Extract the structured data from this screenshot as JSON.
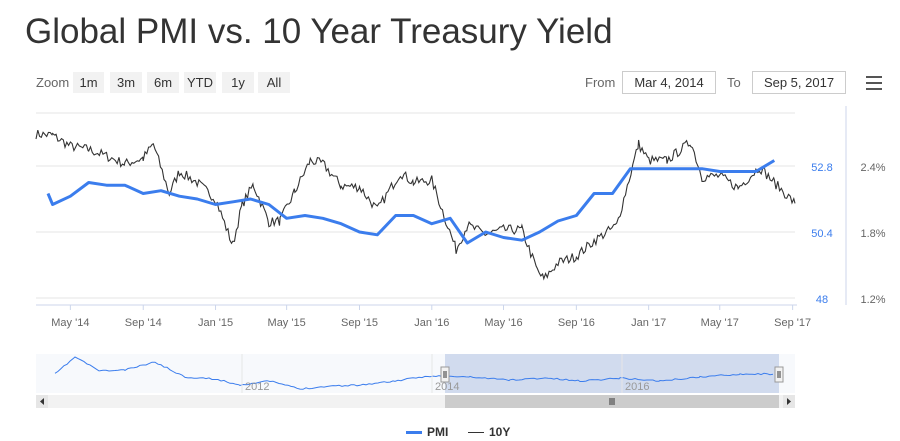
{
  "title": "Global PMI vs. 10 Year Treasury Yield",
  "range_selector": {
    "zoom_label": "Zoom",
    "buttons": [
      "1m",
      "3m",
      "6m",
      "YTD",
      "1y",
      "All"
    ],
    "from_label": "From",
    "from_value": "Mar 4, 2014",
    "to_label": "To",
    "to_value": "Sep 5, 2017"
  },
  "menu_icon": "hamburger-menu-icon",
  "colors": {
    "pmi": "#3B7DED",
    "ten_year": "#333333",
    "navigator_fill": "#c7d3ea"
  },
  "chart_data": {
    "type": "line",
    "title": "Global PMI vs. 10 Year Treasury Yield",
    "x_ticks": [
      "May '14",
      "Sep '14",
      "Jan '15",
      "May '15",
      "Sep '15",
      "Jan '16",
      "May '16",
      "Sep '16",
      "Jan '17",
      "May '17",
      "Sep '17"
    ],
    "x_range": [
      "2014-03-04",
      "2017-09-05"
    ],
    "y_axis_pmi": {
      "ticks": [
        "48",
        "50.4",
        "52.8"
      ],
      "range": [
        48,
        52.8
      ]
    },
    "y_axis_yield": {
      "ticks": [
        "1.2%",
        "1.8%",
        "2.4%"
      ],
      "range": [
        1.2,
        2.4
      ]
    },
    "series": [
      {
        "name": "PMI",
        "color": "#3B7DED",
        "points": [
          [
            "2014-03-01",
            51.8
          ],
          [
            "2014-04-01",
            51.4
          ],
          [
            "2014-05-01",
            51.7
          ],
          [
            "2014-06-01",
            52.2
          ],
          [
            "2014-07-01",
            52.1
          ],
          [
            "2014-08-01",
            52.1
          ],
          [
            "2014-09-01",
            51.8
          ],
          [
            "2014-10-01",
            51.9
          ],
          [
            "2014-11-01",
            51.7
          ],
          [
            "2014-12-01",
            51.6
          ],
          [
            "2015-01-01",
            51.4
          ],
          [
            "2015-02-01",
            51.5
          ],
          [
            "2015-03-01",
            51.6
          ],
          [
            "2015-04-01",
            51.4
          ],
          [
            "2015-05-01",
            50.9
          ],
          [
            "2015-06-01",
            51.0
          ],
          [
            "2015-07-01",
            50.9
          ],
          [
            "2015-08-01",
            50.7
          ],
          [
            "2015-09-01",
            50.4
          ],
          [
            "2015-10-01",
            50.3
          ],
          [
            "2015-11-01",
            51.0
          ],
          [
            "2015-12-01",
            51.0
          ],
          [
            "2016-01-01",
            50.7
          ],
          [
            "2016-02-01",
            50.9
          ],
          [
            "2016-03-01",
            50.0
          ],
          [
            "2016-04-01",
            50.4
          ],
          [
            "2016-05-01",
            50.2
          ],
          [
            "2016-06-01",
            50.1
          ],
          [
            "2016-07-01",
            50.4
          ],
          [
            "2016-08-01",
            50.8
          ],
          [
            "2016-09-01",
            51.0
          ],
          [
            "2016-10-01",
            51.8
          ],
          [
            "2016-11-01",
            51.8
          ],
          [
            "2016-12-01",
            52.7
          ],
          [
            "2017-01-01",
            52.7
          ],
          [
            "2017-02-01",
            52.7
          ],
          [
            "2017-03-01",
            52.7
          ],
          [
            "2017-04-01",
            52.7
          ],
          [
            "2017-05-01",
            52.6
          ],
          [
            "2017-06-01",
            52.6
          ],
          [
            "2017-07-01",
            52.6
          ],
          [
            "2017-08-01",
            53.0
          ]
        ]
      },
      {
        "name": "10Y",
        "color": "#333333",
        "points": [
          [
            "2014-03-04",
            2.69
          ],
          [
            "2014-04-01",
            2.68
          ],
          [
            "2014-05-01",
            2.58
          ],
          [
            "2014-06-01",
            2.55
          ],
          [
            "2014-07-01",
            2.49
          ],
          [
            "2014-08-01",
            2.42
          ],
          [
            "2014-09-01",
            2.47
          ],
          [
            "2014-09-18",
            2.6
          ],
          [
            "2014-10-15",
            2.15
          ],
          [
            "2014-11-01",
            2.35
          ],
          [
            "2014-12-01",
            2.25
          ],
          [
            "2015-01-01",
            2.1
          ],
          [
            "2015-01-30",
            1.68
          ],
          [
            "2015-02-15",
            2.05
          ],
          [
            "2015-03-06",
            2.23
          ],
          [
            "2015-04-01",
            1.89
          ],
          [
            "2015-04-20",
            1.9
          ],
          [
            "2015-05-15",
            2.17
          ],
          [
            "2015-06-10",
            2.45
          ],
          [
            "2015-07-01",
            2.42
          ],
          [
            "2015-08-01",
            2.22
          ],
          [
            "2015-09-01",
            2.21
          ],
          [
            "2015-10-01",
            2.0
          ],
          [
            "2015-11-09",
            2.34
          ],
          [
            "2015-12-01",
            2.25
          ],
          [
            "2016-01-01",
            2.27
          ],
          [
            "2016-02-11",
            1.64
          ],
          [
            "2016-03-01",
            1.86
          ],
          [
            "2016-04-01",
            1.78
          ],
          [
            "2016-05-01",
            1.82
          ],
          [
            "2016-06-01",
            1.82
          ],
          [
            "2016-06-27",
            1.45
          ],
          [
            "2016-07-08",
            1.37
          ],
          [
            "2016-08-01",
            1.52
          ],
          [
            "2016-09-01",
            1.58
          ],
          [
            "2016-10-01",
            1.72
          ],
          [
            "2016-11-08",
            1.86
          ],
          [
            "2016-12-15",
            2.6
          ],
          [
            "2017-01-01",
            2.45
          ],
          [
            "2017-02-01",
            2.45
          ],
          [
            "2017-03-13",
            2.62
          ],
          [
            "2017-04-01",
            2.3
          ],
          [
            "2017-05-01",
            2.31
          ],
          [
            "2017-06-01",
            2.2
          ],
          [
            "2017-07-07",
            2.39
          ],
          [
            "2017-08-01",
            2.25
          ],
          [
            "2017-09-05",
            2.06
          ]
        ]
      }
    ],
    "navigator": {
      "x_ticks": [
        "2012",
        "2014",
        "2016"
      ],
      "selected_range": [
        "2014-03-04",
        "2017-09-05"
      ]
    },
    "legend": {
      "placement": "bottom-center",
      "items": [
        "PMI",
        "10Y"
      ]
    },
    "grid": true
  }
}
